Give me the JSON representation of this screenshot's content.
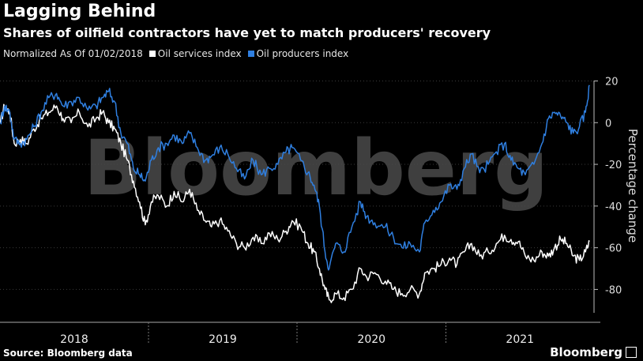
{
  "title": "Lagging Behind",
  "subtitle": "Shares of oilfield contractors have yet to match producers' recovery",
  "legend": {
    "note": "Normalized As Of 01/02/2018",
    "series1": "Oil services index",
    "series2": "Oil producers index"
  },
  "source": "Source: Bloomberg data",
  "brand": "Bloomberg",
  "watermark": "Bloomberg",
  "colors": {
    "services": "#ffffff",
    "producers": "#2f7fe0",
    "grid": "#3a3a3a"
  },
  "chart_data": {
    "type": "line",
    "ylabel": "Percentage change",
    "ylim": [
      -95,
      27
    ],
    "xlim": [
      "2018-01-01",
      "2021-12-31"
    ],
    "yticks": [
      20,
      0,
      -20,
      -40,
      -60,
      -80
    ],
    "xticks": [
      "2018",
      "2019",
      "2020",
      "2021"
    ],
    "series": [
      {
        "name": "Oil services index",
        "points": [
          [
            "2018-01-02",
            0
          ],
          [
            "2018-01-12",
            8
          ],
          [
            "2018-01-25",
            5
          ],
          [
            "2018-02-05",
            -10
          ],
          [
            "2018-02-20",
            -8
          ],
          [
            "2018-03-08",
            -10
          ],
          [
            "2018-03-25",
            -3
          ],
          [
            "2018-04-12",
            2
          ],
          [
            "2018-05-01",
            5
          ],
          [
            "2018-05-20",
            8
          ],
          [
            "2018-06-05",
            2
          ],
          [
            "2018-06-25",
            0
          ],
          [
            "2018-07-15",
            5
          ],
          [
            "2018-08-05",
            -2
          ],
          [
            "2018-08-25",
            2
          ],
          [
            "2018-09-10",
            5
          ],
          [
            "2018-09-25",
            0
          ],
          [
            "2018-10-10",
            -3
          ],
          [
            "2018-10-25",
            -10
          ],
          [
            "2018-11-10",
            -18
          ],
          [
            "2018-11-25",
            -28
          ],
          [
            "2018-12-10",
            -38
          ],
          [
            "2018-12-24",
            -49
          ],
          [
            "2019-01-08",
            -38
          ],
          [
            "2019-01-25",
            -35
          ],
          [
            "2019-02-15",
            -40
          ],
          [
            "2019-03-05",
            -33
          ],
          [
            "2019-03-25",
            -38
          ],
          [
            "2019-04-12",
            -32
          ],
          [
            "2019-05-01",
            -42
          ],
          [
            "2019-05-20",
            -47
          ],
          [
            "2019-06-05",
            -50
          ],
          [
            "2019-06-25",
            -47
          ],
          [
            "2019-07-15",
            -52
          ],
          [
            "2019-08-05",
            -58
          ],
          [
            "2019-08-25",
            -60
          ],
          [
            "2019-09-15",
            -55
          ],
          [
            "2019-10-05",
            -58
          ],
          [
            "2019-10-25",
            -53
          ],
          [
            "2019-11-15",
            -56
          ],
          [
            "2019-12-05",
            -52
          ],
          [
            "2019-12-20",
            -47
          ],
          [
            "2020-01-10",
            -50
          ],
          [
            "2020-01-28",
            -58
          ],
          [
            "2020-02-12",
            -62
          ],
          [
            "2020-02-25",
            -70
          ],
          [
            "2020-03-10",
            -80
          ],
          [
            "2020-03-20",
            -85
          ],
          [
            "2020-04-05",
            -82
          ],
          [
            "2020-04-25",
            -84
          ],
          [
            "2020-05-15",
            -80
          ],
          [
            "2020-06-05",
            -70
          ],
          [
            "2020-06-20",
            -74
          ],
          [
            "2020-07-10",
            -72
          ],
          [
            "2020-08-05",
            -76
          ],
          [
            "2020-08-25",
            -80
          ],
          [
            "2020-09-15",
            -82
          ],
          [
            "2020-10-05",
            -80
          ],
          [
            "2020-10-28",
            -82
          ],
          [
            "2020-11-10",
            -72
          ],
          [
            "2020-12-01",
            -70
          ],
          [
            "2020-12-20",
            -68
          ],
          [
            "2021-01-10",
            -65
          ],
          [
            "2021-01-28",
            -68
          ],
          [
            "2021-02-15",
            -62
          ],
          [
            "2021-03-05",
            -58
          ],
          [
            "2021-03-25",
            -64
          ],
          [
            "2021-04-15",
            -62
          ],
          [
            "2021-05-05",
            -58
          ],
          [
            "2021-05-25",
            -54
          ],
          [
            "2021-06-10",
            -56
          ],
          [
            "2021-06-28",
            -57
          ],
          [
            "2021-07-15",
            -64
          ],
          [
            "2021-08-05",
            -66
          ],
          [
            "2021-08-25",
            -62
          ],
          [
            "2021-09-10",
            -64
          ],
          [
            "2021-09-25",
            -60
          ],
          [
            "2021-10-10",
            -56
          ],
          [
            "2021-10-25",
            -58
          ],
          [
            "2021-11-10",
            -64
          ],
          [
            "2021-11-25",
            -66
          ],
          [
            "2021-12-10",
            -62
          ],
          [
            "2021-12-20",
            -57
          ]
        ]
      },
      {
        "name": "Oil producers index",
        "points": [
          [
            "2018-01-02",
            0
          ],
          [
            "2018-01-12",
            8
          ],
          [
            "2018-01-25",
            5
          ],
          [
            "2018-02-05",
            -8
          ],
          [
            "2018-02-20",
            -10
          ],
          [
            "2018-03-08",
            -8
          ],
          [
            "2018-03-25",
            -2
          ],
          [
            "2018-04-12",
            5
          ],
          [
            "2018-05-01",
            12
          ],
          [
            "2018-05-20",
            14
          ],
          [
            "2018-06-05",
            8
          ],
          [
            "2018-06-25",
            10
          ],
          [
            "2018-07-15",
            12
          ],
          [
            "2018-08-05",
            6
          ],
          [
            "2018-08-25",
            8
          ],
          [
            "2018-09-10",
            12
          ],
          [
            "2018-09-25",
            15
          ],
          [
            "2018-10-10",
            10
          ],
          [
            "2018-10-25",
            -5
          ],
          [
            "2018-11-10",
            -10
          ],
          [
            "2018-11-25",
            -22
          ],
          [
            "2018-12-10",
            -25
          ],
          [
            "2018-12-24",
            -28
          ],
          [
            "2019-01-08",
            -18
          ],
          [
            "2019-01-25",
            -12
          ],
          [
            "2019-02-15",
            -10
          ],
          [
            "2019-03-05",
            -6
          ],
          [
            "2019-03-25",
            -10
          ],
          [
            "2019-04-12",
            -5
          ],
          [
            "2019-05-01",
            -12
          ],
          [
            "2019-05-20",
            -18
          ],
          [
            "2019-06-05",
            -16
          ],
          [
            "2019-06-25",
            -12
          ],
          [
            "2019-07-15",
            -15
          ],
          [
            "2019-08-05",
            -22
          ],
          [
            "2019-08-25",
            -27
          ],
          [
            "2019-09-15",
            -18
          ],
          [
            "2019-10-05",
            -25
          ],
          [
            "2019-10-25",
            -22
          ],
          [
            "2019-11-15",
            -20
          ],
          [
            "2019-12-05",
            -14
          ],
          [
            "2019-12-20",
            -12
          ],
          [
            "2020-01-10",
            -18
          ],
          [
            "2020-01-28",
            -24
          ],
          [
            "2020-02-12",
            -30
          ],
          [
            "2020-02-25",
            -40
          ],
          [
            "2020-03-10",
            -62
          ],
          [
            "2020-03-20",
            -70
          ],
          [
            "2020-04-05",
            -58
          ],
          [
            "2020-04-25",
            -62
          ],
          [
            "2020-05-15",
            -50
          ],
          [
            "2020-06-05",
            -38
          ],
          [
            "2020-06-20",
            -45
          ],
          [
            "2020-07-10",
            -48
          ],
          [
            "2020-08-05",
            -50
          ],
          [
            "2020-08-25",
            -55
          ],
          [
            "2020-09-15",
            -60
          ],
          [
            "2020-10-05",
            -58
          ],
          [
            "2020-10-28",
            -62
          ],
          [
            "2020-11-10",
            -48
          ],
          [
            "2020-12-01",
            -42
          ],
          [
            "2020-12-20",
            -38
          ],
          [
            "2021-01-10",
            -30
          ],
          [
            "2021-01-28",
            -32
          ],
          [
            "2021-02-15",
            -22
          ],
          [
            "2021-03-05",
            -15
          ],
          [
            "2021-03-25",
            -24
          ],
          [
            "2021-04-15",
            -20
          ],
          [
            "2021-05-05",
            -14
          ],
          [
            "2021-05-25",
            -10
          ],
          [
            "2021-06-10",
            -18
          ],
          [
            "2021-06-28",
            -22
          ],
          [
            "2021-07-15",
            -25
          ],
          [
            "2021-08-05",
            -20
          ],
          [
            "2021-08-25",
            -10
          ],
          [
            "2021-09-10",
            2
          ],
          [
            "2021-09-25",
            5
          ],
          [
            "2021-10-10",
            3
          ],
          [
            "2021-10-25",
            0
          ],
          [
            "2021-11-10",
            -5
          ],
          [
            "2021-11-25",
            -2
          ],
          [
            "2021-12-10",
            5
          ],
          [
            "2021-12-20",
            18
          ]
        ]
      }
    ]
  }
}
